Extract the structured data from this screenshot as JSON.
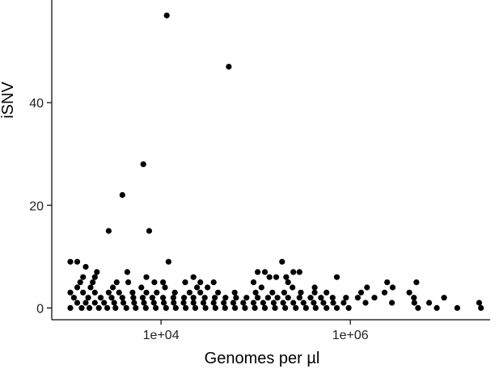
{
  "chart_data": {
    "type": "scatter",
    "title": "",
    "xlabel": "Genomes per µl",
    "ylabel": "iSNV",
    "x_scale": "log10",
    "xlim": [
      700,
      30000000
    ],
    "ylim": [
      -2.3,
      60
    ],
    "x_ticks": [
      {
        "value": 10000,
        "label": "1e+04"
      },
      {
        "value": 1000000,
        "label": "1e+06"
      }
    ],
    "y_ticks": [
      {
        "value": 0,
        "label": "0"
      },
      {
        "value": 20,
        "label": "20"
      },
      {
        "value": 40,
        "label": "40"
      }
    ],
    "grid": false,
    "legend": "none",
    "point_color": "#000000",
    "points": [
      [
        11500,
        57
      ],
      [
        52000,
        47
      ],
      [
        6500,
        28
      ],
      [
        3900,
        22
      ],
      [
        7500,
        15
      ],
      [
        2800,
        15
      ],
      [
        1100,
        9
      ],
      [
        1300,
        9
      ],
      [
        12000,
        9
      ],
      [
        190000,
        9
      ],
      [
        1600,
        8
      ],
      [
        2100,
        7
      ],
      [
        4400,
        7
      ],
      [
        105000,
        7
      ],
      [
        125000,
        7
      ],
      [
        250000,
        7
      ],
      [
        290000,
        7
      ],
      [
        1500,
        6
      ],
      [
        2000,
        6
      ],
      [
        7000,
        6
      ],
      [
        22000,
        6
      ],
      [
        140000,
        6
      ],
      [
        165000,
        6
      ],
      [
        210000,
        6
      ],
      [
        720000,
        6
      ],
      [
        1400,
        5
      ],
      [
        1900,
        5
      ],
      [
        3400,
        5
      ],
      [
        4500,
        5
      ],
      [
        8500,
        5
      ],
      [
        10500,
        5
      ],
      [
        18000,
        5
      ],
      [
        26000,
        5
      ],
      [
        36000,
        5
      ],
      [
        95000,
        5
      ],
      [
        220000,
        5
      ],
      [
        2450000,
        5
      ],
      [
        5000000,
        5
      ],
      [
        1300,
        4
      ],
      [
        1800,
        4
      ],
      [
        3100,
        4
      ],
      [
        6200,
        4
      ],
      [
        11000,
        4
      ],
      [
        24000,
        4
      ],
      [
        31000,
        4
      ],
      [
        115000,
        4
      ],
      [
        245000,
        4
      ],
      [
        420000,
        4
      ],
      [
        1500000,
        4
      ],
      [
        2800000,
        4
      ],
      [
        1100,
        3
      ],
      [
        1500,
        3
      ],
      [
        2000,
        3
      ],
      [
        2800,
        3
      ],
      [
        3600,
        3
      ],
      [
        5000,
        3
      ],
      [
        7000,
        3
      ],
      [
        9000,
        3
      ],
      [
        14000,
        3
      ],
      [
        20000,
        3
      ],
      [
        26000,
        3
      ],
      [
        40000,
        3
      ],
      [
        60000,
        3
      ],
      [
        100000,
        3
      ],
      [
        150000,
        3
      ],
      [
        200000,
        3
      ],
      [
        300000,
        3
      ],
      [
        420000,
        3
      ],
      [
        560000,
        3
      ],
      [
        1300000,
        3
      ],
      [
        2300000,
        3
      ],
      [
        4200000,
        3
      ],
      [
        1200,
        2
      ],
      [
        1700,
        2
      ],
      [
        2300,
        2
      ],
      [
        3000,
        2
      ],
      [
        3900,
        2
      ],
      [
        5100,
        2
      ],
      [
        6400,
        2
      ],
      [
        8100,
        2
      ],
      [
        10500,
        2
      ],
      [
        13500,
        2
      ],
      [
        17500,
        2
      ],
      [
        22000,
        2
      ],
      [
        29000,
        2
      ],
      [
        37000,
        2
      ],
      [
        48000,
        2
      ],
      [
        62000,
        2
      ],
      [
        80000,
        2
      ],
      [
        105000,
        2
      ],
      [
        135000,
        2
      ],
      [
        170000,
        2
      ],
      [
        220000,
        2
      ],
      [
        290000,
        2
      ],
      [
        380000,
        2
      ],
      [
        490000,
        2
      ],
      [
        650000,
        2
      ],
      [
        900000,
        2
      ],
      [
        1200000,
        2
      ],
      [
        1800000,
        2
      ],
      [
        4700000,
        2
      ],
      [
        9800000,
        2
      ],
      [
        1300,
        1
      ],
      [
        1600,
        1
      ],
      [
        2000,
        1
      ],
      [
        2500,
        1
      ],
      [
        3200,
        1
      ],
      [
        4000,
        1
      ],
      [
        5200,
        1
      ],
      [
        6600,
        1
      ],
      [
        8400,
        1
      ],
      [
        10700,
        1
      ],
      [
        13600,
        1
      ],
      [
        17300,
        1
      ],
      [
        22000,
        1
      ],
      [
        28000,
        1
      ],
      [
        36000,
        1
      ],
      [
        46000,
        1
      ],
      [
        58000,
        1
      ],
      [
        74000,
        1
      ],
      [
        95000,
        1
      ],
      [
        120000,
        1
      ],
      [
        155000,
        1
      ],
      [
        195000,
        1
      ],
      [
        250000,
        1
      ],
      [
        320000,
        1
      ],
      [
        410000,
        1
      ],
      [
        520000,
        1
      ],
      [
        660000,
        1
      ],
      [
        850000,
        1
      ],
      [
        1450000,
        1
      ],
      [
        2750000,
        1
      ],
      [
        4750000,
        1
      ],
      [
        6800000,
        1
      ],
      [
        23000000,
        1
      ],
      [
        1100,
        0
      ],
      [
        1450,
        0
      ],
      [
        1750,
        0
      ],
      [
        2200,
        0
      ],
      [
        2700,
        0
      ],
      [
        3300,
        0
      ],
      [
        4300,
        0
      ],
      [
        5400,
        0
      ],
      [
        6900,
        0
      ],
      [
        8800,
        0
      ],
      [
        11300,
        0
      ],
      [
        14300,
        0
      ],
      [
        18200,
        0
      ],
      [
        23000,
        0
      ],
      [
        29500,
        0
      ],
      [
        37500,
        0
      ],
      [
        47500,
        0
      ],
      [
        60500,
        0
      ],
      [
        77000,
        0
      ],
      [
        98000,
        0
      ],
      [
        125000,
        0
      ],
      [
        160000,
        0
      ],
      [
        205000,
        0
      ],
      [
        265000,
        0
      ],
      [
        340000,
        0
      ],
      [
        430000,
        0
      ],
      [
        560000,
        0
      ],
      [
        720000,
        0
      ],
      [
        960000,
        0
      ],
      [
        5200000,
        0
      ],
      [
        8200000,
        0
      ],
      [
        13500000,
        0
      ],
      [
        24000000,
        0
      ]
    ]
  }
}
